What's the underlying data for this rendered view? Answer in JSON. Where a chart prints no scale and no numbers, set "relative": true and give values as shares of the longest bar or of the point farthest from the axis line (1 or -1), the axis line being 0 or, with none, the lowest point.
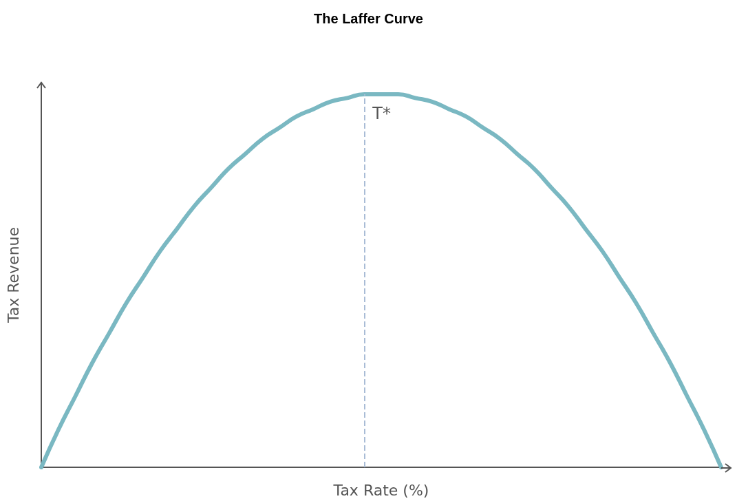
{
  "chart_data": {
    "type": "line",
    "title": "The Laffer Curve",
    "xlabel": "Tax Rate (%)",
    "ylabel": "Tax Revenue",
    "relative": true,
    "categories": [
      null,
      null,
      null,
      null,
      null,
      null,
      null,
      null,
      null,
      null,
      null,
      null,
      null,
      null,
      null,
      null,
      null,
      null,
      null,
      null,
      null,
      null,
      null,
      null,
      null,
      null,
      null,
      null,
      null,
      null,
      null,
      null,
      null,
      null,
      null,
      null,
      null,
      null,
      null,
      null,
      null
    ],
    "series": [
      {
        "color": "#7ab8c2",
        "values": [
          0,
          0.1,
          0.19,
          0.28,
          0.36,
          0.44,
          0.51,
          0.58,
          0.64,
          0.7,
          0.75,
          0.8,
          0.84,
          0.88,
          0.91,
          0.94,
          0.96,
          0.98,
          0.99,
          1,
          1,
          1,
          0.99,
          0.98,
          0.96,
          0.94,
          0.91,
          0.88,
          0.84,
          0.8,
          0.75,
          0.7,
          0.64,
          0.58,
          0.51,
          0.44,
          0.36,
          0.28,
          0.19,
          0.1,
          0
        ]
      }
    ],
    "annotations": [
      "T*"
    ],
    "grid": false,
    "marker": "none",
    "line_style": "solid"
  }
}
